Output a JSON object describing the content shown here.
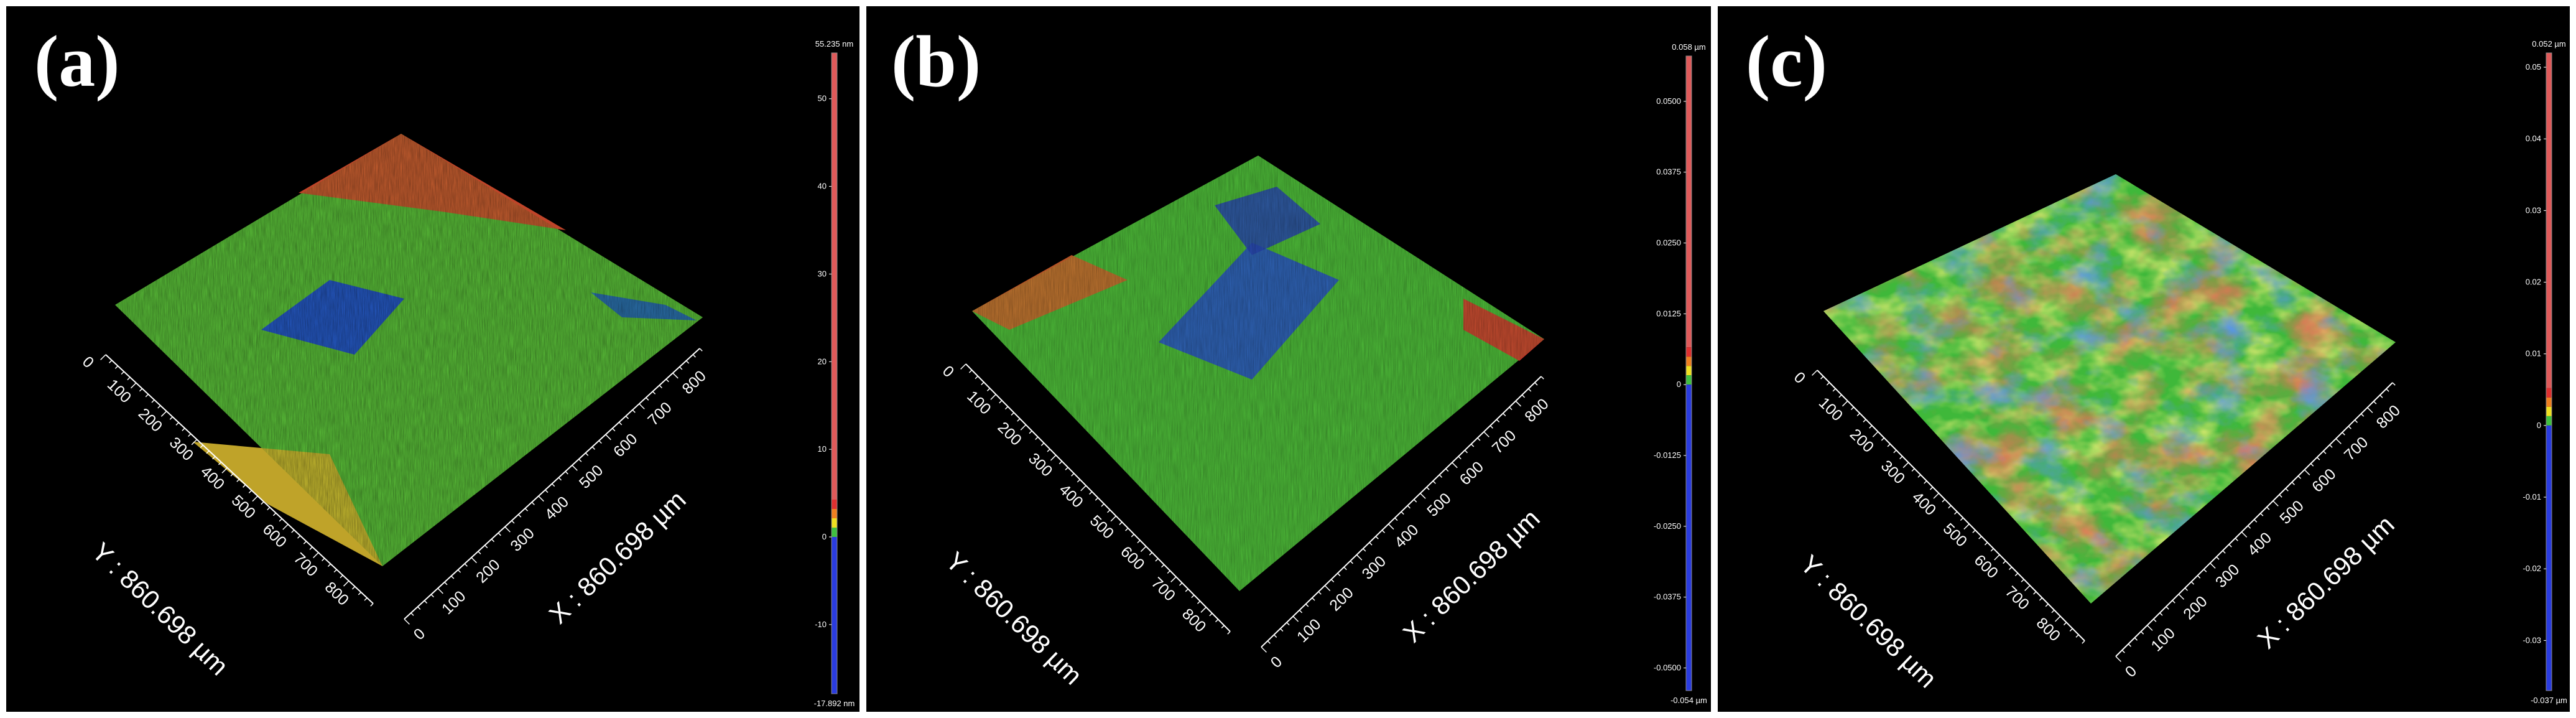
{
  "panels": [
    {
      "label": "(a)",
      "x_axis_label": "X : 860.698 µm",
      "y_axis_label": "Y : 860.698 µm",
      "x_ticks": [
        "0",
        "100",
        "200",
        "300",
        "400",
        "500",
        "600",
        "700",
        "800"
      ],
      "y_ticks": [
        "0",
        "100",
        "200",
        "300",
        "400",
        "500",
        "600",
        "700",
        "800"
      ],
      "colorbar": {
        "max": "55.235 nm",
        "min": "-17.892 nm",
        "ticks": [
          "50",
          "40",
          "30",
          "20",
          "10",
          "0",
          "-10"
        ],
        "tick_values": [
          50,
          40,
          30,
          20,
          10,
          0,
          -10
        ],
        "range": [
          -17.892,
          55.235
        ]
      }
    },
    {
      "label": "(b)",
      "x_axis_label": "X : 860.698 µm",
      "y_axis_label": "Y : 860.698 µm",
      "x_ticks": [
        "0",
        "100",
        "200",
        "300",
        "400",
        "500",
        "600",
        "700",
        "800"
      ],
      "y_ticks": [
        "0",
        "100",
        "200",
        "300",
        "400",
        "500",
        "600",
        "700",
        "800"
      ],
      "colorbar": {
        "max": "0.058 µm",
        "min": "-0.054 µm",
        "ticks": [
          "0.0500",
          "0.0375",
          "0.0250",
          "0.0125",
          "0",
          "-0.0125",
          "-0.0250",
          "-0.0375",
          "-0.0500"
        ],
        "tick_values": [
          0.05,
          0.0375,
          0.025,
          0.0125,
          0,
          -0.0125,
          -0.025,
          -0.0375,
          -0.05
        ],
        "range": [
          -0.054,
          0.058
        ]
      }
    },
    {
      "label": "(c)",
      "x_axis_label": "X : 860.698 µm",
      "y_axis_label": "Y : 860.698 µm",
      "x_ticks": [
        "0",
        "100",
        "200",
        "300",
        "400",
        "500",
        "600",
        "700",
        "800"
      ],
      "y_ticks": [
        "0",
        "100",
        "200",
        "300",
        "400",
        "500",
        "600",
        "700",
        "800"
      ],
      "colorbar": {
        "max": "0.052 µm",
        "min": "-0.037 µm",
        "ticks": [
          "0.05",
          "0.04",
          "0.03",
          "0.02",
          "0.01",
          "0",
          "-0.01",
          "-0.02",
          "-0.03"
        ],
        "tick_values": [
          0.05,
          0.04,
          0.03,
          0.02,
          0.01,
          0,
          -0.01,
          -0.02,
          -0.03
        ],
        "range": [
          -0.037,
          0.052
        ]
      }
    }
  ]
}
